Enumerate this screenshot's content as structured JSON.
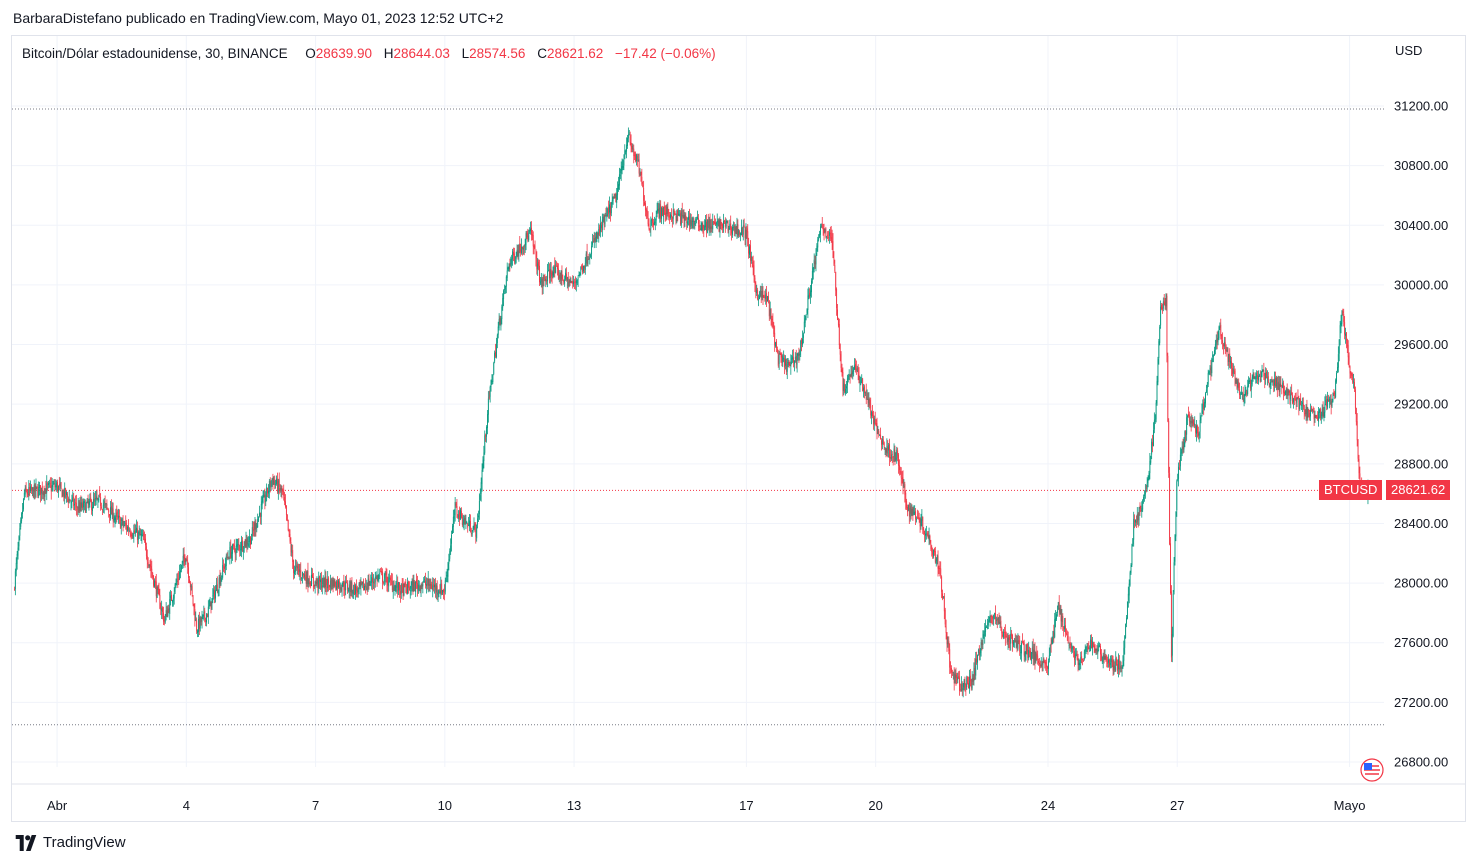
{
  "header": {
    "publisher": "BarbaraDistefano publicado en TradingView.com, Mayo 01, 2023 12:52 UTC+2"
  },
  "legend": {
    "symbol": "Bitcoin/Dólar estadounidense, 30, BINANCE",
    "open_label": "O",
    "open": "28639.90",
    "high_label": "H",
    "high": "28644.03",
    "low_label": "L",
    "low": "28574.56",
    "close_label": "C",
    "close": "28621.62",
    "change": "−17.42 (−0.06%)"
  },
  "price_scale": {
    "currency": "USD"
  },
  "last_price": {
    "ticker": "BTCUSD",
    "price": "28621.62"
  },
  "footer": {
    "brand": "TradingView"
  },
  "colors": {
    "up": "#089981",
    "down": "#f23645",
    "grid": "#f0f3fa",
    "text": "#131722"
  },
  "chart_data": {
    "type": "candlestick",
    "interval": "30",
    "exchange": "BINANCE",
    "ylim": [
      26600,
      31400
    ],
    "y_ticks": [
      31200,
      30800,
      30400,
      30000,
      29600,
      29200,
      28800,
      28400,
      28000,
      27600,
      27200,
      26800
    ],
    "y_tick_labels": [
      "31200.00",
      "30800.00",
      "30400.00",
      "30000.00",
      "29600.00",
      "29200.00",
      "28800.00",
      "28400.00",
      "28000.00",
      "27600.00",
      "27200.00",
      "26800.00"
    ],
    "x_range": [
      "2023-03-31T00:00",
      "2023-05-01T12:30"
    ],
    "x_ticks": [
      {
        "label": "Abr",
        "date": "2023-04-01"
      },
      {
        "label": "4",
        "date": "2023-04-04"
      },
      {
        "label": "7",
        "date": "2023-04-07"
      },
      {
        "label": "10",
        "date": "2023-04-10"
      },
      {
        "label": "13",
        "date": "2023-04-13"
      },
      {
        "label": "17",
        "date": "2023-04-17"
      },
      {
        "label": "20",
        "date": "2023-04-20"
      },
      {
        "label": "24",
        "date": "2023-04-24"
      },
      {
        "label": "27",
        "date": "2023-04-27"
      },
      {
        "label": "Mayo",
        "date": "2023-05-01"
      }
    ],
    "high_line": 31180,
    "low_line": 27050,
    "last_price": 28621.62,
    "price_path": [
      {
        "t": "2023-03-31T00:00",
        "p": 27950
      },
      {
        "t": "2023-03-31T06:00",
        "p": 28600
      },
      {
        "t": "2023-04-01T00:00",
        "p": 28650
      },
      {
        "t": "2023-04-01T12:00",
        "p": 28500
      },
      {
        "t": "2023-04-02T00:00",
        "p": 28550
      },
      {
        "t": "2023-04-02T12:00",
        "p": 28400
      },
      {
        "t": "2023-04-03T00:00",
        "p": 28300
      },
      {
        "t": "2023-04-03T12:00",
        "p": 27750
      },
      {
        "t": "2023-04-04T00:00",
        "p": 28200
      },
      {
        "t": "2023-04-04T06:00",
        "p": 27700
      },
      {
        "t": "2023-04-04T12:00",
        "p": 27800
      },
      {
        "t": "2023-04-05T00:00",
        "p": 28200
      },
      {
        "t": "2023-04-05T12:00",
        "p": 28300
      },
      {
        "t": "2023-04-06T00:00",
        "p": 28700
      },
      {
        "t": "2023-04-06T06:00",
        "p": 28600
      },
      {
        "t": "2023-04-06T12:00",
        "p": 28100
      },
      {
        "t": "2023-04-07T00:00",
        "p": 28000
      },
      {
        "t": "2023-04-07T12:00",
        "p": 28000
      },
      {
        "t": "2023-04-08T00:00",
        "p": 27950
      },
      {
        "t": "2023-04-08T12:00",
        "p": 28050
      },
      {
        "t": "2023-04-09T00:00",
        "p": 27950
      },
      {
        "t": "2023-04-09T12:00",
        "p": 28000
      },
      {
        "t": "2023-04-10T00:00",
        "p": 27950
      },
      {
        "t": "2023-04-10T06:00",
        "p": 28500
      },
      {
        "t": "2023-04-10T12:00",
        "p": 28400
      },
      {
        "t": "2023-04-10T18:00",
        "p": 28350
      },
      {
        "t": "2023-04-11T00:00",
        "p": 29150
      },
      {
        "t": "2023-04-11T06:00",
        "p": 29700
      },
      {
        "t": "2023-04-11T12:00",
        "p": 30150
      },
      {
        "t": "2023-04-12T00:00",
        "p": 30350
      },
      {
        "t": "2023-04-12T06:00",
        "p": 30000
      },
      {
        "t": "2023-04-12T12:00",
        "p": 30100
      },
      {
        "t": "2023-04-13T00:00",
        "p": 30000
      },
      {
        "t": "2023-04-13T12:00",
        "p": 30300
      },
      {
        "t": "2023-04-14T00:00",
        "p": 30600
      },
      {
        "t": "2023-04-14T06:00",
        "p": 31000
      },
      {
        "t": "2023-04-14T12:00",
        "p": 30800
      },
      {
        "t": "2023-04-14T18:00",
        "p": 30400
      },
      {
        "t": "2023-04-15T00:00",
        "p": 30500
      },
      {
        "t": "2023-04-15T12:00",
        "p": 30450
      },
      {
        "t": "2023-04-16T00:00",
        "p": 30400
      },
      {
        "t": "2023-04-16T12:00",
        "p": 30400
      },
      {
        "t": "2023-04-17T00:00",
        "p": 30350
      },
      {
        "t": "2023-04-17T06:00",
        "p": 29950
      },
      {
        "t": "2023-04-17T12:00",
        "p": 29900
      },
      {
        "t": "2023-04-17T18:00",
        "p": 29500
      },
      {
        "t": "2023-04-18T00:00",
        "p": 29450
      },
      {
        "t": "2023-04-18T06:00",
        "p": 29550
      },
      {
        "t": "2023-04-18T12:00",
        "p": 30000
      },
      {
        "t": "2023-04-18T18:00",
        "p": 30400
      },
      {
        "t": "2023-04-19T00:00",
        "p": 30300
      },
      {
        "t": "2023-04-19T06:00",
        "p": 29300
      },
      {
        "t": "2023-04-19T12:00",
        "p": 29450
      },
      {
        "t": "2023-04-19T18:00",
        "p": 29300
      },
      {
        "t": "2023-04-20T00:00",
        "p": 29050
      },
      {
        "t": "2023-04-20T06:00",
        "p": 28900
      },
      {
        "t": "2023-04-20T12:00",
        "p": 28850
      },
      {
        "t": "2023-04-20T18:00",
        "p": 28500
      },
      {
        "t": "2023-04-21T00:00",
        "p": 28450
      },
      {
        "t": "2023-04-21T06:00",
        "p": 28300
      },
      {
        "t": "2023-04-21T12:00",
        "p": 28100
      },
      {
        "t": "2023-04-21T18:00",
        "p": 27400
      },
      {
        "t": "2023-04-22T00:00",
        "p": 27300
      },
      {
        "t": "2023-04-22T06:00",
        "p": 27350
      },
      {
        "t": "2023-04-22T12:00",
        "p": 27650
      },
      {
        "t": "2023-04-22T18:00",
        "p": 27800
      },
      {
        "t": "2023-04-23T00:00",
        "p": 27650
      },
      {
        "t": "2023-04-23T12:00",
        "p": 27550
      },
      {
        "t": "2023-04-24T00:00",
        "p": 27450
      },
      {
        "t": "2023-04-24T06:00",
        "p": 27850
      },
      {
        "t": "2023-04-24T12:00",
        "p": 27600
      },
      {
        "t": "2023-04-24T18:00",
        "p": 27450
      },
      {
        "t": "2023-04-25T00:00",
        "p": 27600
      },
      {
        "t": "2023-04-25T12:00",
        "p": 27450
      },
      {
        "t": "2023-04-25T18:00",
        "p": 27450
      },
      {
        "t": "2023-04-26T00:00",
        "p": 28400
      },
      {
        "t": "2023-04-26T06:00",
        "p": 28550
      },
      {
        "t": "2023-04-26T12:00",
        "p": 29100
      },
      {
        "t": "2023-04-26T15:00",
        "p": 29850
      },
      {
        "t": "2023-04-26T18:00",
        "p": 29900
      },
      {
        "t": "2023-04-26T21:00",
        "p": 27500
      },
      {
        "t": "2023-04-27T00:00",
        "p": 28700
      },
      {
        "t": "2023-04-27T06:00",
        "p": 29100
      },
      {
        "t": "2023-04-27T12:00",
        "p": 29000
      },
      {
        "t": "2023-04-27T18:00",
        "p": 29400
      },
      {
        "t": "2023-04-28T00:00",
        "p": 29700
      },
      {
        "t": "2023-04-28T06:00",
        "p": 29450
      },
      {
        "t": "2023-04-28T12:00",
        "p": 29250
      },
      {
        "t": "2023-04-28T18:00",
        "p": 29350
      },
      {
        "t": "2023-04-29T00:00",
        "p": 29400
      },
      {
        "t": "2023-04-29T12:00",
        "p": 29300
      },
      {
        "t": "2023-04-30T00:00",
        "p": 29150
      },
      {
        "t": "2023-04-30T06:00",
        "p": 29100
      },
      {
        "t": "2023-04-30T12:00",
        "p": 29200
      },
      {
        "t": "2023-04-30T16:00",
        "p": 29250
      },
      {
        "t": "2023-04-30T20:00",
        "p": 29850
      },
      {
        "t": "2023-05-01T00:00",
        "p": 29450
      },
      {
        "t": "2023-05-01T03:00",
        "p": 29300
      },
      {
        "t": "2023-05-01T06:00",
        "p": 28650
      },
      {
        "t": "2023-05-01T09:00",
        "p": 28600
      },
      {
        "t": "2023-05-01T12:30",
        "p": 28621.62
      }
    ]
  }
}
